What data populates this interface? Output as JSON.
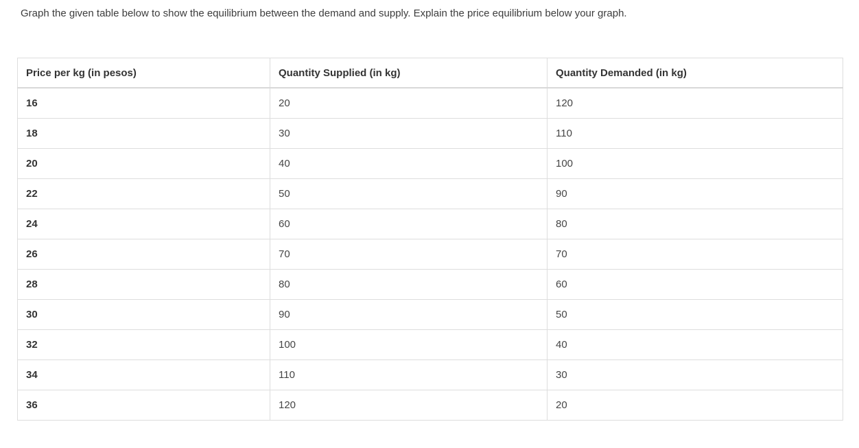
{
  "page": {
    "instruction": "Graph the given table below to show the equilibrium between the demand and supply. Explain the price equilibrium below your graph."
  },
  "table": {
    "columns": [
      "Price per kg (in pesos)",
      "Quantity Supplied (in kg)",
      "Quantity Demanded (in kg)"
    ],
    "rows": [
      [
        "16",
        "20",
        "120"
      ],
      [
        "18",
        "30",
        "110"
      ],
      [
        "20",
        "40",
        "100"
      ],
      [
        "22",
        "50",
        "90"
      ],
      [
        "24",
        "60",
        "80"
      ],
      [
        "26",
        "70",
        "70"
      ],
      [
        "28",
        "80",
        "60"
      ],
      [
        "30",
        "90",
        "50"
      ],
      [
        "32",
        "100",
        "40"
      ],
      [
        "34",
        "110",
        "30"
      ],
      [
        "36",
        "120",
        "20"
      ]
    ]
  },
  "colors": {
    "background": "#ffffff",
    "text_primary": "#333333",
    "text_secondary": "#454545",
    "border": "#dddddd",
    "header_border": "#d8d8d8"
  }
}
